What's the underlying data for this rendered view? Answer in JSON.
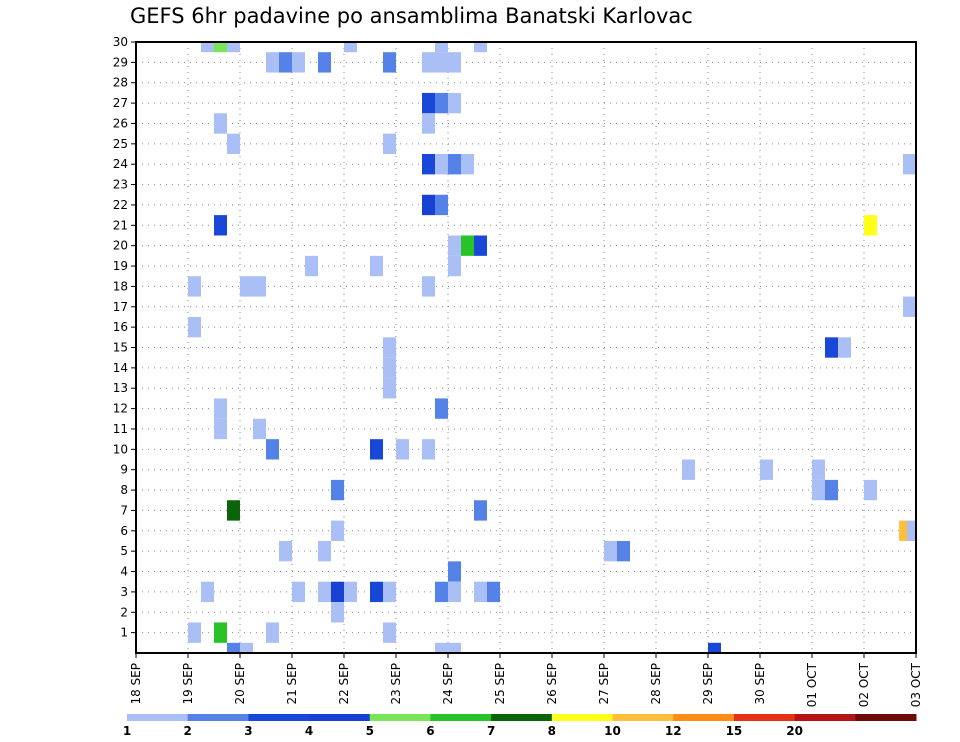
{
  "chart_data": {
    "type": "heatmap",
    "title": "GEFS 6hr padavine po ansamblima Banatski Karlovac",
    "y_range": [
      0,
      30
    ],
    "y_ticks": [
      "1",
      "2",
      "3",
      "4",
      "5",
      "6",
      "7",
      "8",
      "9",
      "10",
      "11",
      "12",
      "13",
      "14",
      "15",
      "16",
      "17",
      "18",
      "19",
      "20",
      "21",
      "22",
      "23",
      "24",
      "25",
      "26",
      "27",
      "28",
      "29",
      "30"
    ],
    "x_range_steps": [
      0,
      60
    ],
    "x_ticks": [
      {
        "step": 0,
        "label": "18 SEP"
      },
      {
        "step": 4,
        "label": "19 SEP"
      },
      {
        "step": 8,
        "label": "20 SEP"
      },
      {
        "step": 12,
        "label": "21 SEP"
      },
      {
        "step": 16,
        "label": "22 SEP"
      },
      {
        "step": 20,
        "label": "23 SEP"
      },
      {
        "step": 24,
        "label": "24 SEP"
      },
      {
        "step": 28,
        "label": "25 SEP"
      },
      {
        "step": 32,
        "label": "26 SEP"
      },
      {
        "step": 36,
        "label": "27 SEP"
      },
      {
        "step": 40,
        "label": "28 SEP"
      },
      {
        "step": 44,
        "label": "29 SEP"
      },
      {
        "step": 48,
        "label": "30 SEP"
      },
      {
        "step": 52,
        "label": "01 OCT"
      },
      {
        "step": 56,
        "label": "02 OCT"
      },
      {
        "step": 60,
        "label": "03 OCT"
      }
    ],
    "grid": true,
    "colorbar": {
      "labels": [
        "1",
        "2",
        "3",
        "4",
        "5",
        "6",
        "7",
        "8",
        "10",
        "12",
        "15",
        "20"
      ],
      "colors": [
        "#aabff5",
        "#5582e6",
        "#1948d8",
        "#1840d2",
        "#78e658",
        "#28c328",
        "#0a640a",
        "#ffff1a",
        "#ffbe3c",
        "#ff8c14",
        "#e63214",
        "#b41414",
        "#6e0a0a"
      ]
    },
    "cells": [
      [
        5.5,
        30,
        1
      ],
      [
        6.5,
        30,
        5
      ],
      [
        7.5,
        30,
        1
      ],
      [
        16.5,
        30,
        1
      ],
      [
        23.5,
        30,
        1
      ],
      [
        26.5,
        30,
        1
      ],
      [
        10.5,
        29,
        1
      ],
      [
        11.5,
        29,
        2
      ],
      [
        12.5,
        29,
        1
      ],
      [
        14.5,
        29,
        2
      ],
      [
        19.5,
        29,
        2
      ],
      [
        22.5,
        29,
        1
      ],
      [
        23.5,
        29,
        1
      ],
      [
        24.5,
        29,
        1
      ],
      [
        22.5,
        27,
        3
      ],
      [
        23.5,
        27,
        2
      ],
      [
        24.5,
        27,
        1
      ],
      [
        6.5,
        26,
        1
      ],
      [
        22.5,
        26,
        1
      ],
      [
        7.5,
        25,
        1
      ],
      [
        19.5,
        25,
        1
      ],
      [
        22.5,
        24,
        3
      ],
      [
        23.5,
        24,
        1
      ],
      [
        24.5,
        24,
        2
      ],
      [
        25.5,
        24,
        1
      ],
      [
        59.5,
        24,
        1
      ],
      [
        22.5,
        22,
        4
      ],
      [
        23.5,
        22,
        2
      ],
      [
        6.5,
        21,
        3
      ],
      [
        56.5,
        21,
        8
      ],
      [
        24.5,
        20,
        1
      ],
      [
        25.5,
        20,
        6
      ],
      [
        26.5,
        20,
        3
      ],
      [
        24.5,
        19,
        1
      ],
      [
        13.5,
        19,
        1
      ],
      [
        18.5,
        19,
        1
      ],
      [
        4.5,
        18,
        1
      ],
      [
        8.5,
        18,
        1
      ],
      [
        9.5,
        18,
        1
      ],
      [
        22.5,
        18,
        1
      ],
      [
        59.5,
        17,
        1
      ],
      [
        4.5,
        16,
        1
      ],
      [
        53.5,
        15,
        3
      ],
      [
        54.5,
        15,
        1
      ],
      [
        19.5,
        15,
        1
      ],
      [
        19.5,
        14,
        1
      ],
      [
        19.5,
        13,
        1
      ],
      [
        6.5,
        12,
        1
      ],
      [
        23.5,
        12,
        2
      ],
      [
        6.5,
        11,
        1
      ],
      [
        9.5,
        11,
        1
      ],
      [
        10.5,
        10,
        2
      ],
      [
        18.5,
        10,
        3
      ],
      [
        20.5,
        10,
        1
      ],
      [
        22.5,
        10,
        1
      ],
      [
        42.5,
        9,
        1
      ],
      [
        48.5,
        9,
        1
      ],
      [
        52.5,
        9,
        1
      ],
      [
        15.5,
        8,
        2
      ],
      [
        52.5,
        8,
        1
      ],
      [
        53.5,
        8,
        2
      ],
      [
        56.5,
        8,
        1
      ],
      [
        7.5,
        7,
        7
      ],
      [
        26.5,
        7,
        2
      ],
      [
        15.5,
        6,
        1
      ],
      [
        59.2,
        6,
        9
      ],
      [
        59.8,
        6,
        1
      ],
      [
        11.5,
        5,
        1
      ],
      [
        14.5,
        5,
        1
      ],
      [
        36.5,
        5,
        1
      ],
      [
        37.5,
        5,
        2
      ],
      [
        24.5,
        4,
        2
      ],
      [
        5.5,
        3,
        1
      ],
      [
        12.5,
        3,
        1
      ],
      [
        14.5,
        3,
        1
      ],
      [
        15.5,
        3,
        4
      ],
      [
        16.5,
        3,
        1
      ],
      [
        18.5,
        3,
        3
      ],
      [
        19.5,
        3,
        1
      ],
      [
        23.5,
        3,
        2
      ],
      [
        24.5,
        3,
        1
      ],
      [
        26.5,
        3,
        1
      ],
      [
        27.5,
        3,
        2
      ],
      [
        15.5,
        2,
        1
      ],
      [
        4.5,
        1,
        1
      ],
      [
        6.5,
        1,
        6
      ],
      [
        10.5,
        1,
        1
      ],
      [
        19.5,
        1,
        1
      ],
      [
        7.5,
        0,
        2
      ],
      [
        8.5,
        0,
        1
      ],
      [
        23.5,
        0,
        1
      ],
      [
        24.5,
        0,
        1
      ],
      [
        44.5,
        0,
        3
      ]
    ]
  }
}
